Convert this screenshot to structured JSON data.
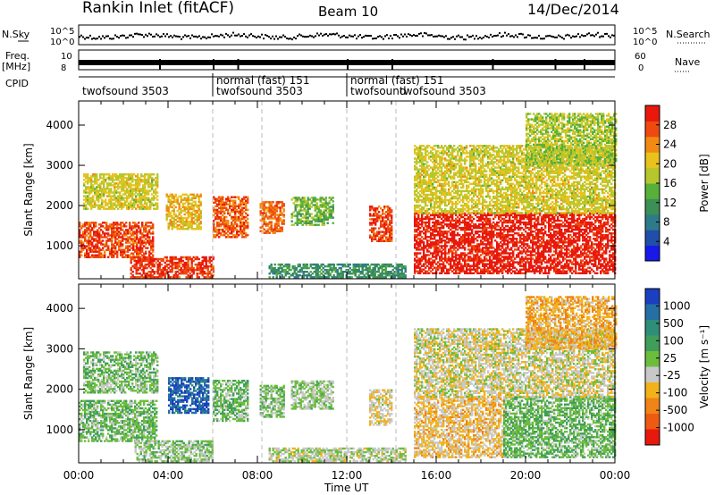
{
  "header": {
    "title": "Rankin Inlet (fitACF)",
    "beam": "Beam 10",
    "date": "14/Dec/2014"
  },
  "status_panel": {
    "left_labels": [
      "N.Sky",
      "Freq.",
      "[MHz]",
      "CPID"
    ],
    "right_labels": [
      "N.Search",
      "Nave"
    ],
    "nsky_ticks": [
      "10^5",
      "10^0"
    ],
    "freq_ticks": [
      "10",
      "8"
    ],
    "nave_ticks": [
      "60",
      "0"
    ],
    "cpid_segments": [
      {
        "label": "twofsound 3503",
        "start_hour": 0.0
      },
      {
        "label": "normal (fast) 151",
        "start_hour": 6.0
      },
      {
        "label": "twofsound 3503",
        "start_hour": 6.0
      },
      {
        "label": "normal (fast) 151",
        "start_hour": 12.0
      },
      {
        "label": "twofsound",
        "start_hour": 12.0
      },
      {
        "label": "twofsound 3503",
        "start_hour": 14.2
      }
    ],
    "cpid_boundaries_hours": [
      6.0,
      12.0
    ]
  },
  "chart_data": [
    {
      "type": "heatmap",
      "title": "",
      "xlabel": "Time UT",
      "ylabel": "Slant Range [km]",
      "xlim_hours": [
        0,
        24
      ],
      "ylim": [
        180,
        4600
      ],
      "x_tick_labels": [
        "00:00",
        "04:00",
        "08:00",
        "12:00",
        "16:00",
        "20:00",
        "00:00"
      ],
      "y_tick_labels": [
        "1000",
        "2000",
        "3000",
        "4000"
      ],
      "colorbar": {
        "label": "Power [dB]",
        "tick_labels": [
          "4",
          "8",
          "12",
          "16",
          "20",
          "24",
          "28"
        ],
        "range": [
          0,
          30
        ],
        "colors": [
          "#1818e8",
          "#1f4fa8",
          "#2e7a8a",
          "#3c8f55",
          "#57b03a",
          "#b5c72c",
          "#e9c21c",
          "#f18a12",
          "#ee4a0f",
          "#e8180d"
        ]
      },
      "echo_regions": [
        {
          "t0": 0.0,
          "t1": 3.3,
          "r0": 700,
          "r1": 1600,
          "value": 26
        },
        {
          "t0": 0.2,
          "t1": 3.5,
          "r0": 1900,
          "r1": 2800,
          "value": 18
        },
        {
          "t0": 2.3,
          "t1": 6.0,
          "r0": 200,
          "r1": 700,
          "value": 27
        },
        {
          "t0": 3.9,
          "t1": 5.5,
          "r0": 1400,
          "r1": 2300,
          "value": 20
        },
        {
          "t0": 6.0,
          "t1": 7.6,
          "r0": 1200,
          "r1": 2200,
          "value": 25
        },
        {
          "t0": 8.1,
          "t1": 9.2,
          "r0": 1300,
          "r1": 2100,
          "value": 24
        },
        {
          "t0": 9.5,
          "t1": 11.4,
          "r0": 1500,
          "r1": 2200,
          "value": 14
        },
        {
          "t0": 8.5,
          "t1": 14.6,
          "r0": 200,
          "r1": 550,
          "value": 10
        },
        {
          "t0": 13.0,
          "t1": 14.0,
          "r0": 1100,
          "r1": 2000,
          "value": 26
        },
        {
          "t0": 15.0,
          "t1": 24.0,
          "r0": 300,
          "r1": 1800,
          "value": 29
        },
        {
          "t0": 15.0,
          "t1": 24.0,
          "r0": 1800,
          "r1": 3500,
          "value": 18
        },
        {
          "t0": 20.0,
          "t1": 24.0,
          "r0": 3000,
          "r1": 4300,
          "value": 16
        }
      ]
    },
    {
      "type": "heatmap",
      "title": "",
      "xlabel": "Time UT",
      "ylabel": "Slant Range [km]",
      "xlim_hours": [
        0,
        24
      ],
      "ylim": [
        180,
        4600
      ],
      "x_tick_labels": [
        "00:00",
        "04:00",
        "08:00",
        "12:00",
        "16:00",
        "20:00",
        "00:00"
      ],
      "y_tick_labels": [
        "1000",
        "2000",
        "3000",
        "4000"
      ],
      "colorbar": {
        "label": "Velocity [m s⁻¹]",
        "tick_labels": [
          "1000",
          "500",
          "100",
          "25",
          "-25",
          "-100",
          "-500",
          "-1000"
        ],
        "range": [
          -1200,
          1200
        ],
        "colors": [
          "#1a3fc0",
          "#256fa4",
          "#2f8e7a",
          "#3f9e5a",
          "#6cbd3e",
          "#c8c8c8",
          "#f2b21a",
          "#f08416",
          "#ee5a12",
          "#e8180d"
        ]
      },
      "echo_regions": [
        {
          "t0": 0.0,
          "t1": 3.5,
          "r0": 700,
          "r1": 1700,
          "value": 150
        },
        {
          "t0": 0.2,
          "t1": 3.5,
          "r0": 1900,
          "r1": 2900,
          "value": 120
        },
        {
          "t0": 2.5,
          "t1": 6.0,
          "r0": 200,
          "r1": 700,
          "value": 60
        },
        {
          "t0": 4.0,
          "t1": 5.8,
          "r0": 1400,
          "r1": 2300,
          "value": 900
        },
        {
          "t0": 6.0,
          "t1": 7.6,
          "r0": 1200,
          "r1": 2200,
          "value": 150
        },
        {
          "t0": 8.1,
          "t1": 9.2,
          "r0": 1300,
          "r1": 2100,
          "value": 80
        },
        {
          "t0": 9.5,
          "t1": 11.4,
          "r0": 1500,
          "r1": 2200,
          "value": 20
        },
        {
          "t0": 8.5,
          "t1": 14.6,
          "r0": 200,
          "r1": 550,
          "value": -40
        },
        {
          "t0": 13.0,
          "t1": 14.0,
          "r0": 1100,
          "r1": 2000,
          "value": -200
        },
        {
          "t0": 15.0,
          "t1": 19.0,
          "r0": 300,
          "r1": 1800,
          "value": -300
        },
        {
          "t0": 19.0,
          "t1": 24.0,
          "r0": 300,
          "r1": 1800,
          "value": 180
        },
        {
          "t0": 15.0,
          "t1": 24.0,
          "r0": 1800,
          "r1": 3500,
          "value": -150
        },
        {
          "t0": 20.0,
          "t1": 24.0,
          "r0": 3000,
          "r1": 4300,
          "value": -400
        }
      ]
    }
  ]
}
